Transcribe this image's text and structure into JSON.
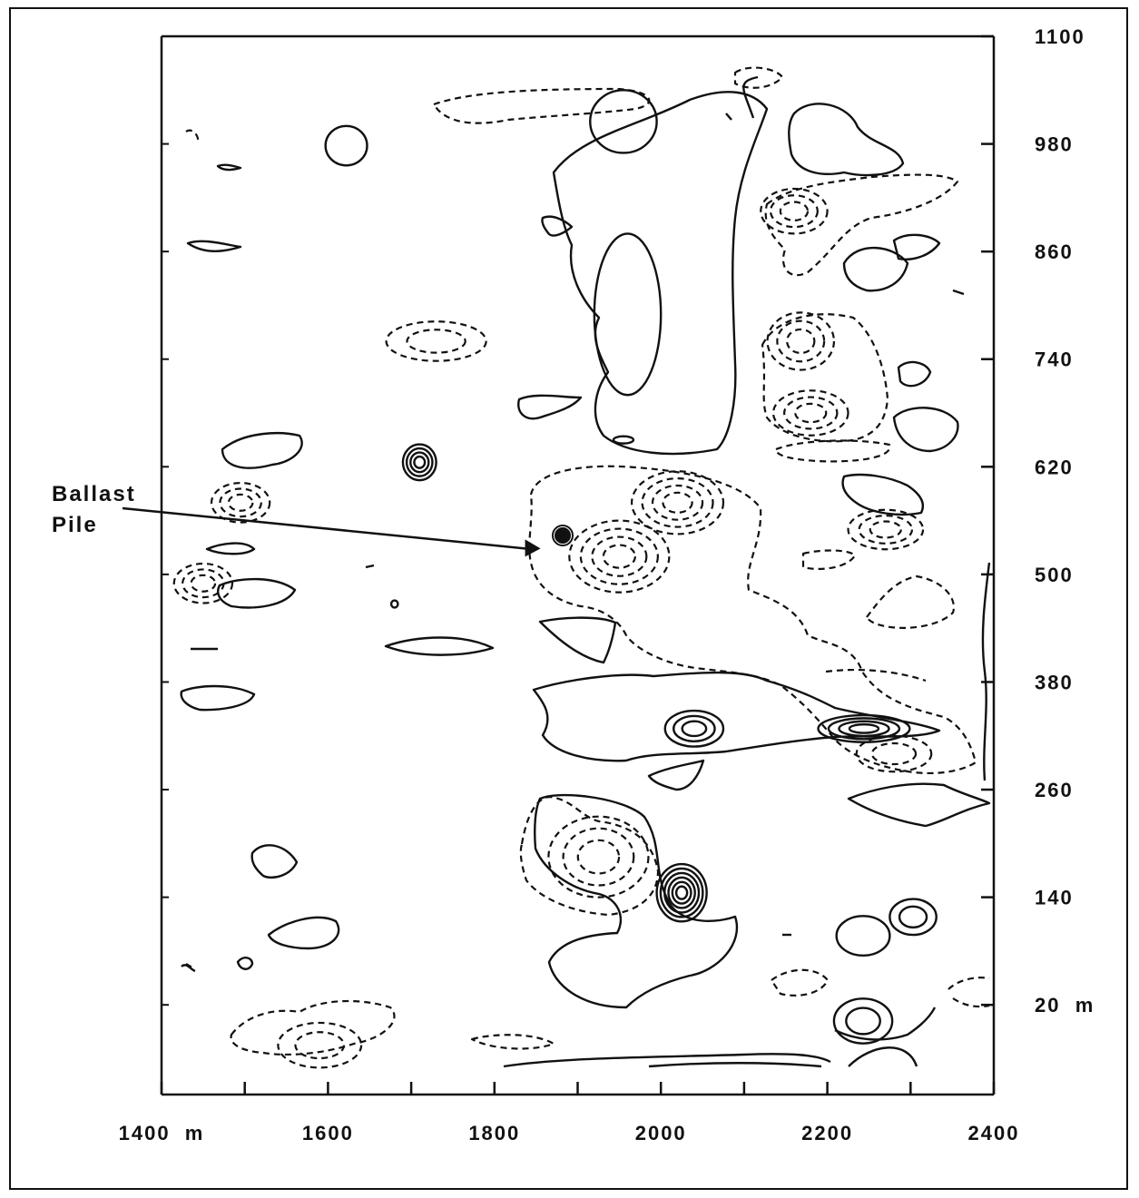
{
  "chart_data": {
    "type": "contour",
    "title": "",
    "xlabel": "",
    "ylabel": "",
    "xlim": [
      1400,
      2400
    ],
    "ylim": [
      -80,
      1100
    ],
    "x_ticks": [
      {
        "value": 1400,
        "label": "1400  m"
      },
      {
        "value": 1500,
        "label": ""
      },
      {
        "value": 1600,
        "label": "1600"
      },
      {
        "value": 1700,
        "label": ""
      },
      {
        "value": 1800,
        "label": "1800"
      },
      {
        "value": 1900,
        "label": ""
      },
      {
        "value": 2000,
        "label": "2000"
      },
      {
        "value": 2100,
        "label": ""
      },
      {
        "value": 2200,
        "label": "2200"
      },
      {
        "value": 2300,
        "label": ""
      },
      {
        "value": 2400,
        "label": "2400"
      }
    ],
    "y_ticks": [
      {
        "value": 1100,
        "label": "1100"
      },
      {
        "value": 980,
        "label": "980"
      },
      {
        "value": 860,
        "label": "860"
      },
      {
        "value": 740,
        "label": "740"
      },
      {
        "value": 620,
        "label": "620"
      },
      {
        "value": 500,
        "label": "500"
      },
      {
        "value": 380,
        "label": "380"
      },
      {
        "value": 260,
        "label": "260"
      },
      {
        "value": 140,
        "label": "140"
      },
      {
        "value": 20,
        "label": "20  m"
      }
    ],
    "contour_styles": [
      {
        "style": "solid",
        "meaning": ""
      },
      {
        "style": "dashed",
        "meaning": ""
      }
    ],
    "annotation": {
      "text_lines": [
        "Ballast",
        "Pile"
      ],
      "target": {
        "x": 1875,
        "y": 538
      }
    },
    "features": [
      {
        "style": "solid",
        "x": 1955,
        "y": 1005,
        "rx": 40,
        "ry": 35,
        "rings": 1
      },
      {
        "style": "solid",
        "x": 1960,
        "y": 790,
        "rx": 40,
        "ry": 90,
        "rings": 1
      },
      {
        "style": "solid",
        "x": 1955,
        "y": 650,
        "rx": 12,
        "ry": 4,
        "rings": 1
      },
      {
        "style": "solid",
        "x": 1622,
        "y": 978,
        "rx": 25,
        "ry": 22,
        "rings": 1
      },
      {
        "style": "solid",
        "x": 1710,
        "y": 625,
        "rx": 20,
        "ry": 20,
        "rings": 4
      },
      {
        "style": "solid",
        "x": 1680,
        "y": 467,
        "rx": 4,
        "ry": 4,
        "rings": 1
      },
      {
        "style": "solid",
        "x": 2040,
        "y": 328,
        "rx": 35,
        "ry": 20,
        "rings": 3
      },
      {
        "style": "solid",
        "x": 2244,
        "y": 328,
        "rx": 55,
        "ry": 15,
        "rings": 4
      },
      {
        "style": "solid",
        "x": 2025,
        "y": 145,
        "rx": 30,
        "ry": 32,
        "rings": 6
      },
      {
        "style": "solid",
        "x": 2303,
        "y": 118,
        "rx": 28,
        "ry": 20,
        "rings": 2
      },
      {
        "style": "solid",
        "x": 2243,
        "y": 97,
        "rx": 32,
        "ry": 22,
        "rings": 1
      },
      {
        "style": "solid",
        "x": 2243,
        "y": 2,
        "rx": 35,
        "ry": 25,
        "rings": 2
      },
      {
        "style": "dashed",
        "x": 1730,
        "y": 760,
        "rx": 60,
        "ry": 22,
        "rings": 2
      },
      {
        "style": "dashed",
        "x": 1495,
        "y": 580,
        "rx": 35,
        "ry": 22,
        "rings": 3
      },
      {
        "style": "dashed",
        "x": 1450,
        "y": 490,
        "rx": 35,
        "ry": 22,
        "rings": 3
      },
      {
        "style": "dashed",
        "x": 2020,
        "y": 580,
        "rx": 55,
        "ry": 35,
        "rings": 4
      },
      {
        "style": "dashed",
        "x": 1950,
        "y": 520,
        "rx": 60,
        "ry": 40,
        "rings": 4
      },
      {
        "style": "dashed",
        "x": 2168,
        "y": 760,
        "rx": 40,
        "ry": 32,
        "rings": 3
      },
      {
        "style": "dashed",
        "x": 2180,
        "y": 680,
        "rx": 45,
        "ry": 25,
        "rings": 3
      },
      {
        "style": "dashed",
        "x": 2270,
        "y": 550,
        "rx": 45,
        "ry": 22,
        "rings": 3
      },
      {
        "style": "dashed",
        "x": 2160,
        "y": 905,
        "rx": 40,
        "ry": 25,
        "rings": 3
      },
      {
        "style": "dashed",
        "x": 1925,
        "y": 185,
        "rx": 60,
        "ry": 45,
        "rings": 3
      },
      {
        "style": "dashed",
        "x": 1590,
        "y": -25,
        "rx": 50,
        "ry": 25,
        "rings": 2
      },
      {
        "style": "dashed",
        "x": 2280,
        "y": 300,
        "rx": 45,
        "ry": 20,
        "rings": 2
      }
    ]
  }
}
